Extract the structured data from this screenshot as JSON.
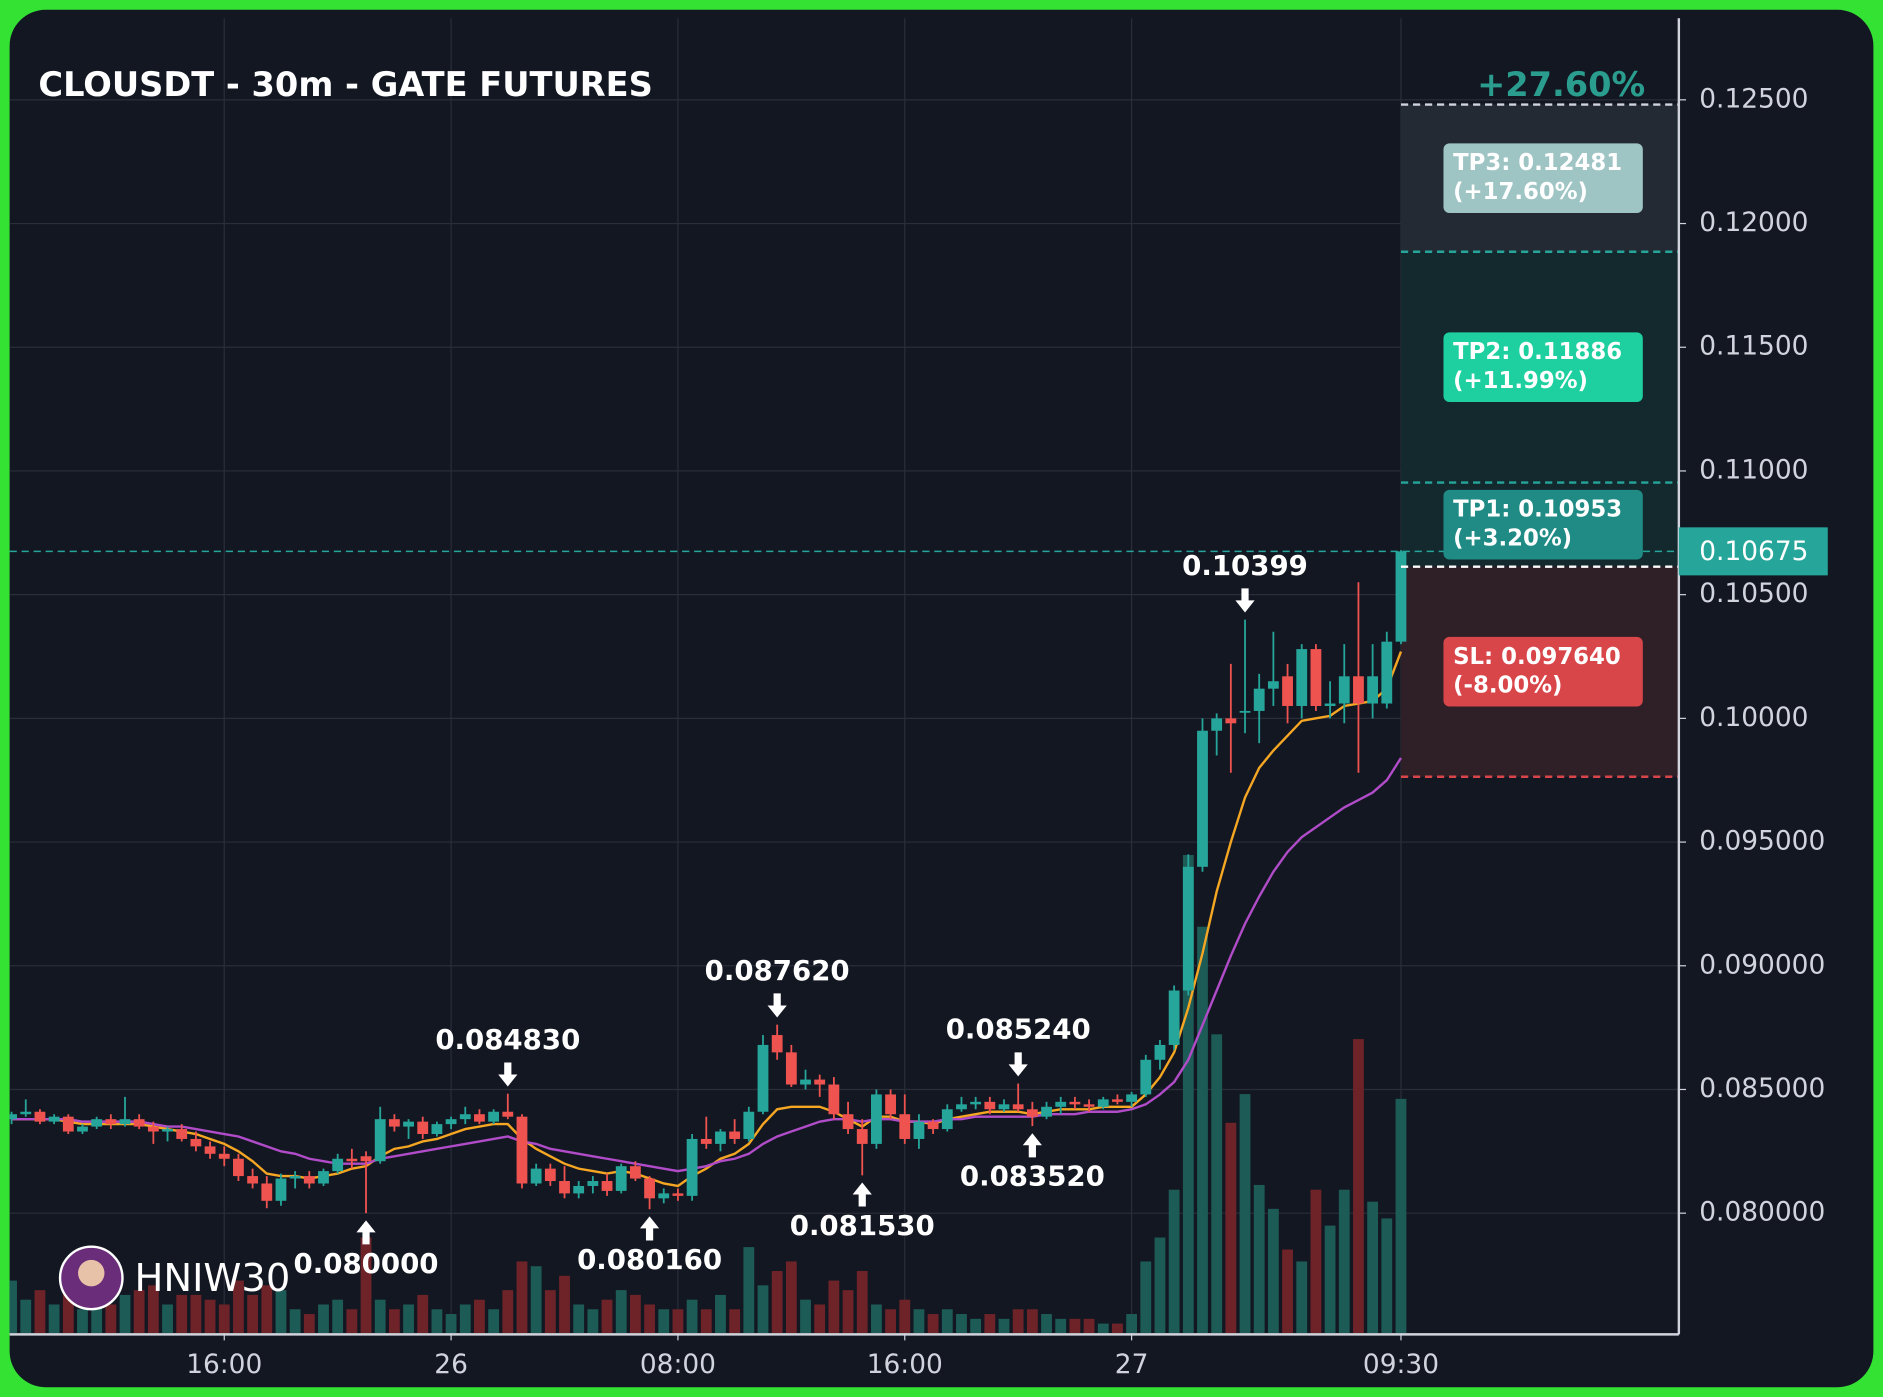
{
  "chart_data": {
    "type": "candlestick",
    "title": "CLOUSDT - 30m - GATE FUTURES",
    "watermark": "HNIW30",
    "up_color": "#26a69a",
    "down_color": "#ef5350",
    "volume_up_color": "#1d5b57",
    "volume_down_color": "#6e2328",
    "fast_ma_color": "#f5a623",
    "slow_ma_color": "#b04cc8",
    "ylim": [
      0.07515,
      0.1283
    ],
    "yticks": [
      {
        "value": 0.08,
        "label": "0.080000"
      },
      {
        "value": 0.085,
        "label": "0.085000"
      },
      {
        "value": 0.09,
        "label": "0.090000"
      },
      {
        "value": 0.095,
        "label": "0.095000"
      },
      {
        "value": 0.1,
        "label": "0.10000"
      },
      {
        "value": 0.105,
        "label": "0.10500"
      },
      {
        "value": 0.11,
        "label": "0.11000"
      },
      {
        "value": 0.115,
        "label": "0.11500"
      },
      {
        "value": 0.12,
        "label": "0.12000"
      },
      {
        "value": 0.125,
        "label": "0.12500"
      }
    ],
    "xlim": [
      -0.14,
      117.6
    ],
    "xticks": [
      {
        "value": 15,
        "label": "16:00"
      },
      {
        "value": 31,
        "label": "26"
      },
      {
        "value": 47,
        "label": "08:00"
      },
      {
        "value": 63,
        "label": "16:00"
      },
      {
        "value": 79,
        "label": "27"
      },
      {
        "value": 98,
        "label": "09:30"
      }
    ],
    "grid": true,
    "volume_ylim": [
      0,
      550
    ],
    "ohlc": [
      [
        0.0838,
        0.0841,
        0.0836,
        0.084
      ],
      [
        0.084,
        0.0846,
        0.0839,
        0.0841
      ],
      [
        0.0841,
        0.0842,
        0.0836,
        0.0837
      ],
      [
        0.0837,
        0.084,
        0.0836,
        0.0839
      ],
      [
        0.0839,
        0.084,
        0.0832,
        0.0833
      ],
      [
        0.0833,
        0.0836,
        0.0832,
        0.0835
      ],
      [
        0.0835,
        0.0839,
        0.0834,
        0.0838
      ],
      [
        0.0838,
        0.084,
        0.0834,
        0.0836
      ],
      [
        0.0836,
        0.0847,
        0.0835,
        0.0838
      ],
      [
        0.0838,
        0.084,
        0.0834,
        0.0835
      ],
      [
        0.0835,
        0.0837,
        0.0828,
        0.0833
      ],
      [
        0.0833,
        0.0835,
        0.0829,
        0.0834
      ],
      [
        0.0834,
        0.0836,
        0.0829,
        0.083
      ],
      [
        0.083,
        0.0833,
        0.0825,
        0.0827
      ],
      [
        0.0827,
        0.0829,
        0.0822,
        0.0824
      ],
      [
        0.0824,
        0.0827,
        0.0819,
        0.0822
      ],
      [
        0.0822,
        0.0824,
        0.0813,
        0.0815
      ],
      [
        0.0815,
        0.0818,
        0.081,
        0.0812
      ],
      [
        0.0812,
        0.0815,
        0.0802,
        0.0805
      ],
      [
        0.0805,
        0.0816,
        0.0803,
        0.0814
      ],
      [
        0.0814,
        0.0817,
        0.081,
        0.0815
      ],
      [
        0.0815,
        0.0817,
        0.081,
        0.0812
      ],
      [
        0.0812,
        0.0818,
        0.0811,
        0.0817
      ],
      [
        0.0817,
        0.0824,
        0.0816,
        0.0822
      ],
      [
        0.0822,
        0.0826,
        0.0818,
        0.0821
      ],
      [
        0.0823,
        0.0825,
        0.08,
        0.0821
      ],
      [
        0.0821,
        0.0843,
        0.082,
        0.0838
      ],
      [
        0.0838,
        0.084,
        0.0833,
        0.0835
      ],
      [
        0.0835,
        0.0838,
        0.083,
        0.0837
      ],
      [
        0.0837,
        0.0839,
        0.083,
        0.0832
      ],
      [
        0.0832,
        0.0837,
        0.0831,
        0.0836
      ],
      [
        0.0836,
        0.0839,
        0.0834,
        0.0838
      ],
      [
        0.0838,
        0.0843,
        0.0836,
        0.084
      ],
      [
        0.084,
        0.0842,
        0.0836,
        0.0837
      ],
      [
        0.0837,
        0.0842,
        0.0836,
        0.0841
      ],
      [
        0.0841,
        0.08483,
        0.0838,
        0.0839
      ],
      [
        0.0839,
        0.084,
        0.081,
        0.0812
      ],
      [
        0.0812,
        0.082,
        0.0811,
        0.0818
      ],
      [
        0.0818,
        0.082,
        0.0811,
        0.0813
      ],
      [
        0.0813,
        0.0819,
        0.0806,
        0.0808
      ],
      [
        0.0808,
        0.0813,
        0.0806,
        0.0811
      ],
      [
        0.0811,
        0.0815,
        0.0808,
        0.0813
      ],
      [
        0.0813,
        0.0816,
        0.0807,
        0.0809
      ],
      [
        0.0809,
        0.082,
        0.0808,
        0.0819
      ],
      [
        0.0819,
        0.0821,
        0.0813,
        0.0814
      ],
      [
        0.0814,
        0.0815,
        0.08016,
        0.0806
      ],
      [
        0.0806,
        0.081,
        0.0804,
        0.0808
      ],
      [
        0.0808,
        0.081,
        0.0805,
        0.0807
      ],
      [
        0.0807,
        0.0832,
        0.0805,
        0.083
      ],
      [
        0.083,
        0.0839,
        0.0826,
        0.0828
      ],
      [
        0.0828,
        0.0834,
        0.0825,
        0.0833
      ],
      [
        0.0833,
        0.0838,
        0.0828,
        0.083
      ],
      [
        0.083,
        0.0843,
        0.0829,
        0.0841
      ],
      [
        0.0841,
        0.0872,
        0.084,
        0.0868
      ],
      [
        0.0872,
        0.08762,
        0.0862,
        0.0865
      ],
      [
        0.0865,
        0.0868,
        0.0851,
        0.0852
      ],
      [
        0.0852,
        0.0858,
        0.085,
        0.0854
      ],
      [
        0.0854,
        0.0856,
        0.0847,
        0.0852
      ],
      [
        0.0852,
        0.0855,
        0.0838,
        0.084
      ],
      [
        0.084,
        0.0845,
        0.0832,
        0.0834
      ],
      [
        0.0834,
        0.0838,
        0.08153,
        0.0828
      ],
      [
        0.0828,
        0.085,
        0.0826,
        0.0848
      ],
      [
        0.0848,
        0.085,
        0.0838,
        0.084
      ],
      [
        0.084,
        0.0848,
        0.0828,
        0.083
      ],
      [
        0.083,
        0.084,
        0.0826,
        0.0837
      ],
      [
        0.0837,
        0.0838,
        0.0832,
        0.0834
      ],
      [
        0.0834,
        0.0844,
        0.0833,
        0.0842
      ],
      [
        0.0842,
        0.0847,
        0.0841,
        0.0844
      ],
      [
        0.0844,
        0.0847,
        0.0842,
        0.0845
      ],
      [
        0.0845,
        0.0847,
        0.084,
        0.0842
      ],
      [
        0.0842,
        0.0846,
        0.0841,
        0.0844
      ],
      [
        0.0844,
        0.08524,
        0.0841,
        0.0842
      ],
      [
        0.0842,
        0.0845,
        0.08352,
        0.0839
      ],
      [
        0.0839,
        0.0845,
        0.0838,
        0.0843
      ],
      [
        0.0843,
        0.0847,
        0.084,
        0.0845
      ],
      [
        0.0845,
        0.0847,
        0.0842,
        0.0844
      ],
      [
        0.0844,
        0.0846,
        0.0841,
        0.0843
      ],
      [
        0.0843,
        0.0847,
        0.0842,
        0.0846
      ],
      [
        0.0846,
        0.0848,
        0.0844,
        0.0845
      ],
      [
        0.0845,
        0.0849,
        0.0843,
        0.0848
      ],
      [
        0.0848,
        0.0864,
        0.0847,
        0.0862
      ],
      [
        0.0862,
        0.087,
        0.0858,
        0.0868
      ],
      [
        0.0868,
        0.0892,
        0.0866,
        0.089
      ],
      [
        0.089,
        0.0945,
        0.0888,
        0.094
      ],
      [
        0.094,
        0.1,
        0.0938,
        0.0995
      ],
      [
        0.0995,
        0.1002,
        0.0985,
        0.1
      ],
      [
        0.1,
        0.1022,
        0.0978,
        0.0998
      ],
      [
        0.1003,
        0.10399,
        0.0994,
        0.1003
      ],
      [
        0.1003,
        0.1018,
        0.099,
        0.1012
      ],
      [
        0.1012,
        0.1035,
        0.1005,
        0.1015
      ],
      [
        0.1017,
        0.1022,
        0.0998,
        0.1005
      ],
      [
        0.1005,
        0.103,
        0.1,
        0.1028
      ],
      [
        0.1028,
        0.103,
        0.1003,
        0.1005
      ],
      [
        0.1005,
        0.1015,
        0.1,
        0.1006
      ],
      [
        0.1006,
        0.103,
        0.0998,
        0.1017
      ],
      [
        0.1017,
        0.1055,
        0.0978,
        0.1006
      ],
      [
        0.1006,
        0.103,
        0.1,
        0.1017
      ],
      [
        0.1006,
        0.1035,
        0.1004,
        0.1031
      ],
      [
        0.1031,
        0.1068,
        0.103,
        0.10675
      ]
    ],
    "volume": [
      22,
      14,
      18,
      12,
      20,
      10,
      14,
      12,
      16,
      18,
      20,
      12,
      16,
      16,
      14,
      12,
      22,
      16,
      20,
      18,
      10,
      8,
      12,
      14,
      10,
      40,
      14,
      10,
      12,
      16,
      10,
      8,
      12,
      14,
      10,
      18,
      30,
      28,
      18,
      24,
      12,
      10,
      14,
      18,
      16,
      12,
      10,
      10,
      14,
      10,
      16,
      10,
      36,
      20,
      26,
      30,
      14,
      12,
      22,
      18,
      26,
      12,
      10,
      14,
      10,
      8,
      10,
      8,
      6,
      8,
      6,
      10,
      10,
      8,
      6,
      6,
      6,
      4,
      4,
      8,
      30,
      40,
      60,
      200,
      170,
      125,
      88,
      100,
      62,
      52,
      35,
      30,
      60,
      45,
      60,
      123,
      55,
      48,
      98
    ],
    "ma_fast": [
      0.0838,
      0.0838,
      0.0838,
      0.0838,
      0.0837,
      0.0836,
      0.0836,
      0.0836,
      0.0836,
      0.0836,
      0.0835,
      0.0834,
      0.0833,
      0.0832,
      0.083,
      0.0828,
      0.0825,
      0.0821,
      0.0816,
      0.0815,
      0.0815,
      0.0814,
      0.0815,
      0.0816,
      0.0818,
      0.0819,
      0.0823,
      0.0826,
      0.0827,
      0.0829,
      0.083,
      0.0832,
      0.0834,
      0.0835,
      0.0836,
      0.0836,
      0.083,
      0.0826,
      0.0823,
      0.082,
      0.0818,
      0.0817,
      0.0816,
      0.0817,
      0.0816,
      0.0814,
      0.0812,
      0.0811,
      0.0815,
      0.0818,
      0.0822,
      0.0824,
      0.0828,
      0.0836,
      0.0842,
      0.0843,
      0.0843,
      0.0843,
      0.0841,
      0.0838,
      0.0835,
      0.0839,
      0.0839,
      0.0837,
      0.0837,
      0.0836,
      0.0838,
      0.0839,
      0.084,
      0.0841,
      0.0841,
      0.0841,
      0.084,
      0.0841,
      0.0842,
      0.0842,
      0.0842,
      0.0843,
      0.0843,
      0.0843,
      0.0848,
      0.0855,
      0.0865,
      0.0883,
      0.0905,
      0.093,
      0.095,
      0.0968,
      0.098,
      0.0987,
      0.0993,
      0.0999,
      0.1,
      0.1001,
      0.1005,
      0.1006,
      0.1007,
      0.1012,
      0.1027
    ],
    "ma_slow": [
      0.0838,
      0.0838,
      0.0838,
      0.0838,
      0.0838,
      0.0837,
      0.0837,
      0.0837,
      0.0837,
      0.0837,
      0.0836,
      0.0835,
      0.0835,
      0.0834,
      0.0833,
      0.0832,
      0.0831,
      0.0829,
      0.0827,
      0.0825,
      0.0824,
      0.0822,
      0.0821,
      0.082,
      0.082,
      0.082,
      0.0822,
      0.0823,
      0.0824,
      0.0825,
      0.0826,
      0.0827,
      0.0828,
      0.0829,
      0.083,
      0.0831,
      0.0829,
      0.0828,
      0.0826,
      0.0825,
      0.0824,
      0.0823,
      0.0822,
      0.0821,
      0.082,
      0.0819,
      0.0818,
      0.0817,
      0.0818,
      0.0819,
      0.0821,
      0.0822,
      0.0824,
      0.0828,
      0.0831,
      0.0833,
      0.0835,
      0.0837,
      0.0838,
      0.0838,
      0.0837,
      0.0838,
      0.0838,
      0.0837,
      0.0837,
      0.0837,
      0.0838,
      0.0838,
      0.0839,
      0.0839,
      0.0839,
      0.0839,
      0.0839,
      0.084,
      0.084,
      0.084,
      0.0841,
      0.0841,
      0.0841,
      0.0842,
      0.0844,
      0.0848,
      0.0853,
      0.0862,
      0.0876,
      0.089,
      0.0904,
      0.0917,
      0.0928,
      0.0938,
      0.0946,
      0.0952,
      0.0956,
      0.096,
      0.0964,
      0.0967,
      0.097,
      0.0975,
      0.0984
    ],
    "annotations": [
      {
        "index": 25,
        "value": 0.08,
        "label": "0.080000",
        "side": "low"
      },
      {
        "index": 35,
        "value": 0.08483,
        "label": "0.084830",
        "side": "high"
      },
      {
        "index": 45,
        "value": 0.08016,
        "label": "0.080160",
        "side": "low"
      },
      {
        "index": 54,
        "value": 0.08762,
        "label": "0.087620",
        "side": "high"
      },
      {
        "index": 60,
        "value": 0.08153,
        "label": "0.081530",
        "side": "low"
      },
      {
        "index": 71,
        "value": 0.08524,
        "label": "0.085240",
        "side": "high"
      },
      {
        "index": 72,
        "value": 0.08352,
        "label": "0.083520",
        "side": "low"
      },
      {
        "index": 87,
        "value": 0.10399,
        "label": "0.10399",
        "side": "high"
      }
    ],
    "current_price": 0.10675,
    "position": {
      "start_index": 98,
      "entry": 0.10613,
      "total_change": "+27.60%",
      "stop": {
        "value": 0.09764,
        "label": "SL: 0.097640",
        "change": "(-8.00%)",
        "color": "#d9464a"
      },
      "targets": [
        {
          "value": 0.10953,
          "label": "TP1: 0.10953",
          "change": "(+3.20%)",
          "color": "#1f8b84"
        },
        {
          "value": 0.11886,
          "label": "TP2: 0.11886",
          "change": "(+11.99%)",
          "color": "#1ecf9f"
        },
        {
          "value": 0.12481,
          "label": "TP3: 0.12481",
          "change": "(+17.60%)",
          "color": "#9ec4c3"
        }
      ]
    }
  }
}
